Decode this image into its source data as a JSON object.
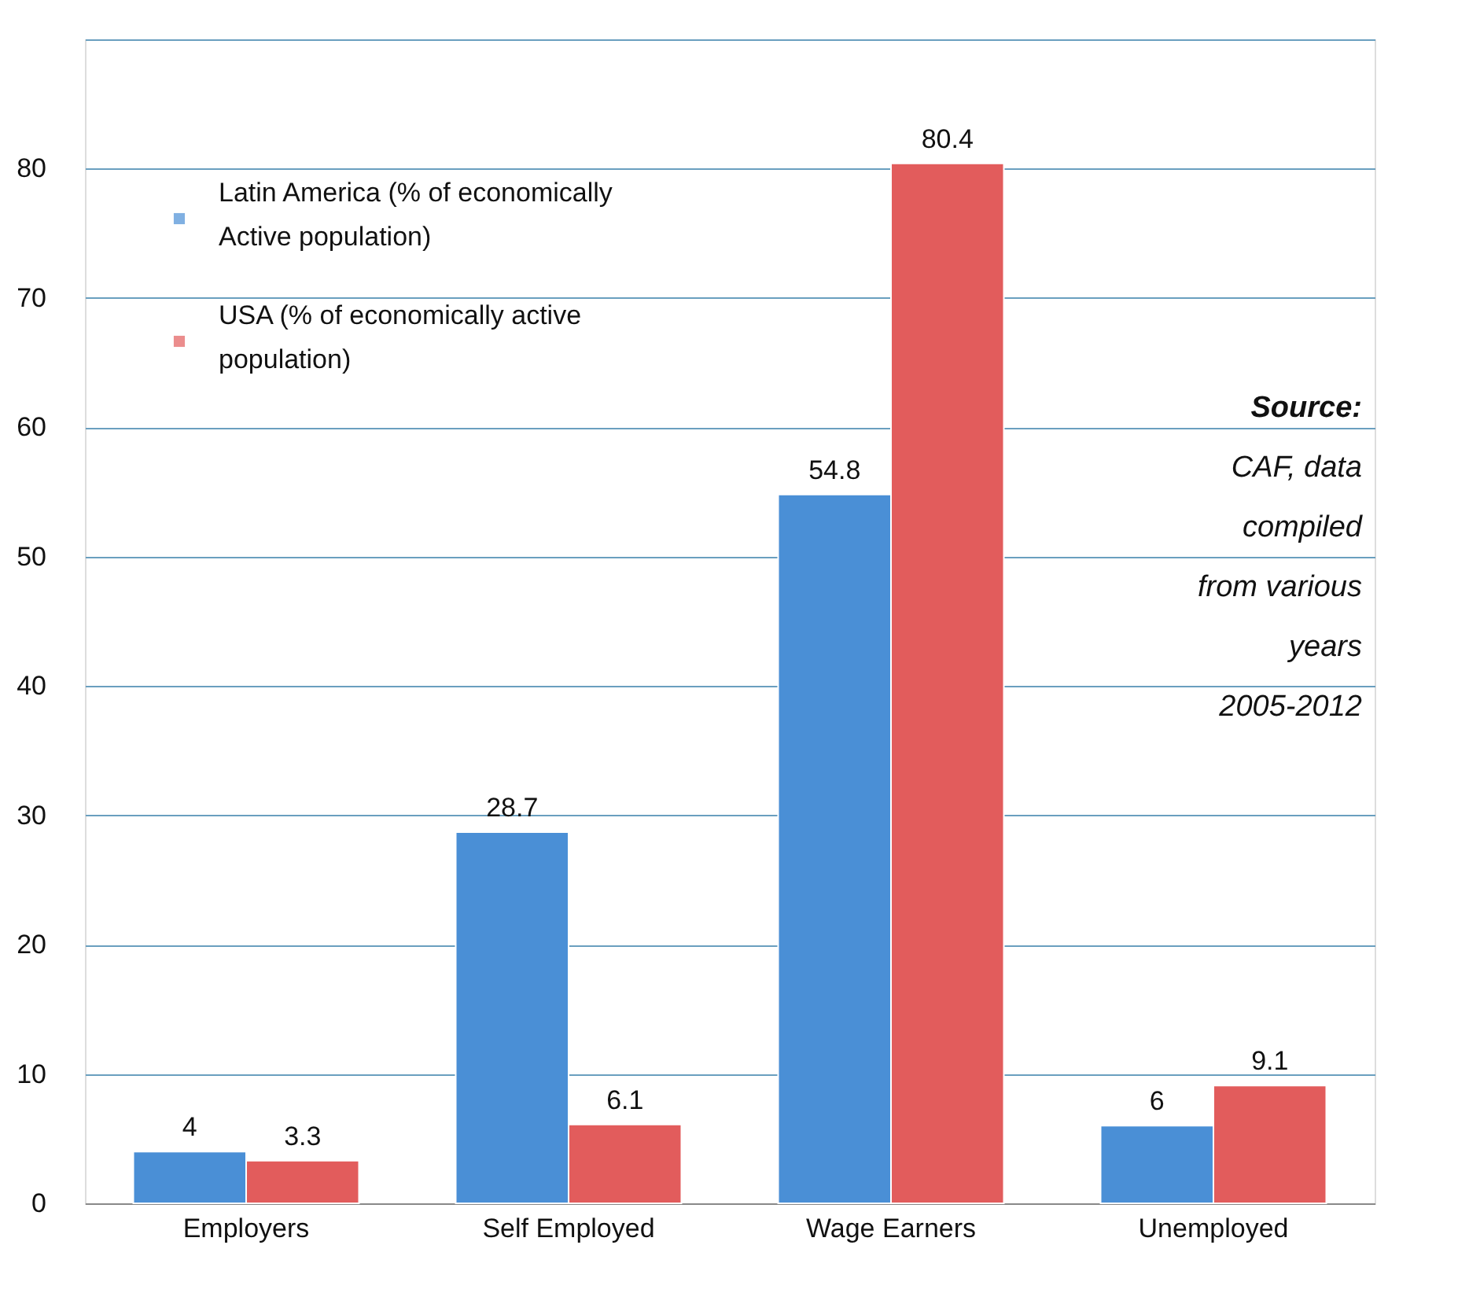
{
  "chart_data": {
    "type": "bar",
    "categories": [
      "Employers",
      "Self Employed",
      "Wage Earners",
      "Unemployed"
    ],
    "series": [
      {
        "name": "Latin America (% of economically Active population)",
        "color": "#4a8fd6",
        "values": [
          4,
          28.7,
          54.8,
          6
        ]
      },
      {
        "name": "USA (% of economically active population)",
        "color": "#e25c5c",
        "values": [
          3.3,
          6.1,
          80.4,
          9.1
        ]
      }
    ],
    "ylim": [
      0,
      90
    ],
    "yticks": [
      0,
      10,
      20,
      30,
      40,
      50,
      60,
      70,
      80,
      {
        "value": 90,
        "label": null
      }
    ],
    "grid": "y",
    "legend": "top left",
    "data_labels": true,
    "annotations": [
      "Source:",
      "CAF, data compiled from various years 2005-2012"
    ]
  }
}
